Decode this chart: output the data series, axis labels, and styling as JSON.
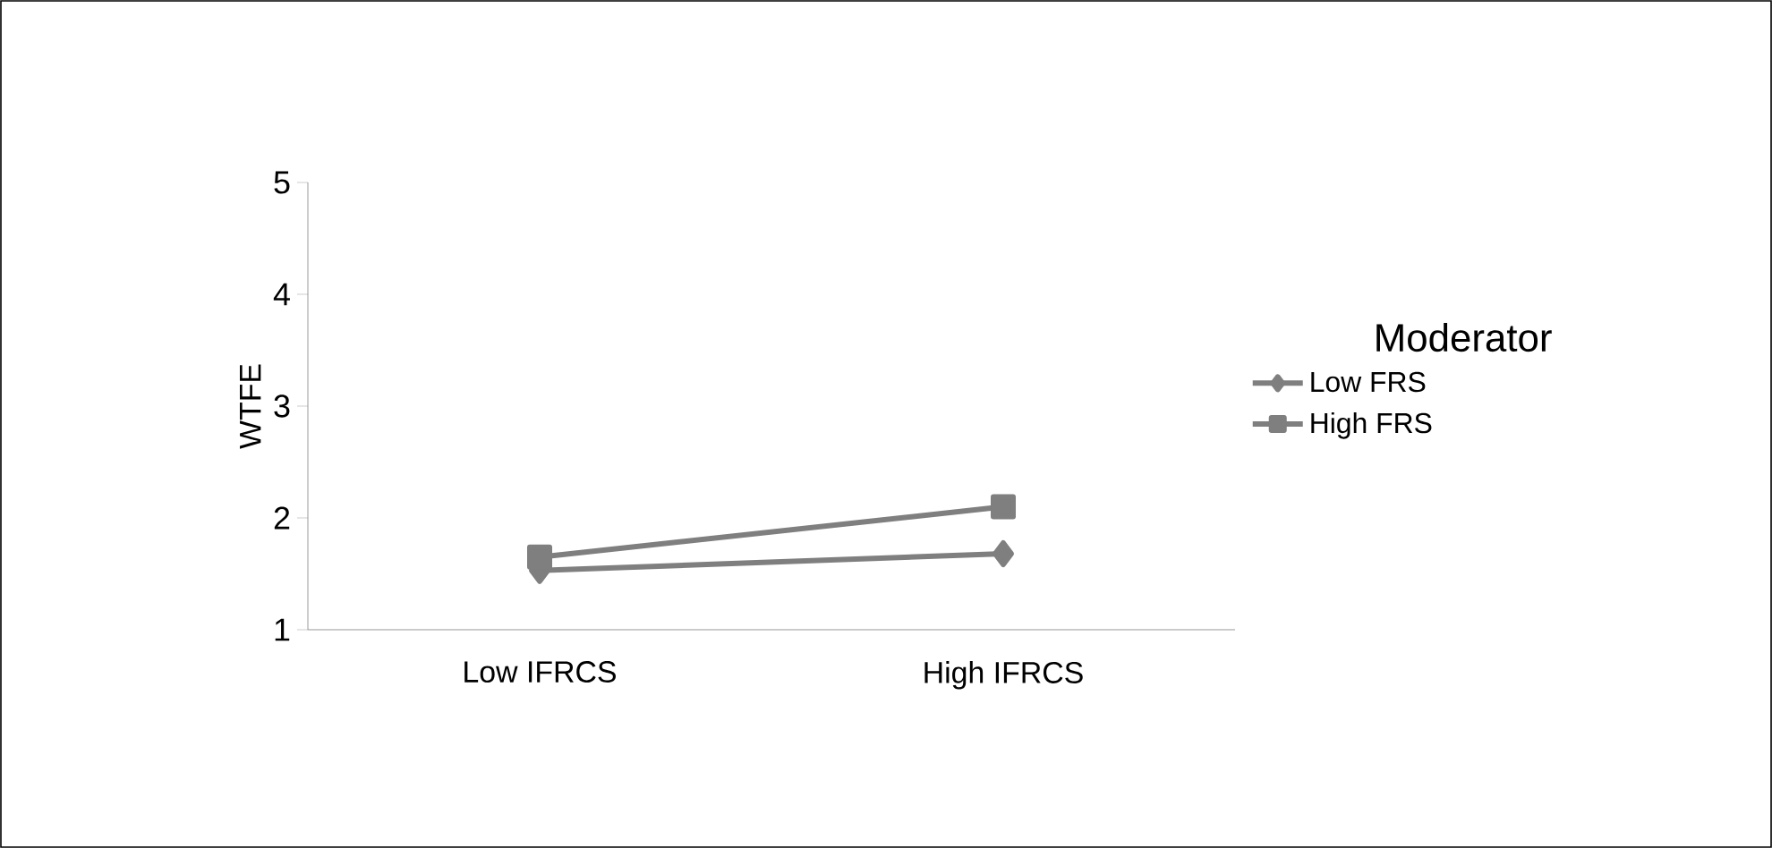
{
  "chart_data": {
    "type": "line",
    "ylabel": "WTFE",
    "legend_title": "Moderator",
    "categories": [
      "Low IFRCS",
      "High IFRCS"
    ],
    "series": [
      {
        "name": "Low FRS",
        "color": "#7f7f7f",
        "marker": "diamond",
        "values": [
          1.53,
          1.68
        ]
      },
      {
        "name": "High FRS",
        "color": "#7f7f7f",
        "marker": "square",
        "values": [
          1.65,
          2.1
        ]
      }
    ],
    "ylim": [
      1,
      5
    ],
    "yticks": [
      1,
      2,
      3,
      4,
      5
    ],
    "grid": false,
    "legend": "right"
  }
}
